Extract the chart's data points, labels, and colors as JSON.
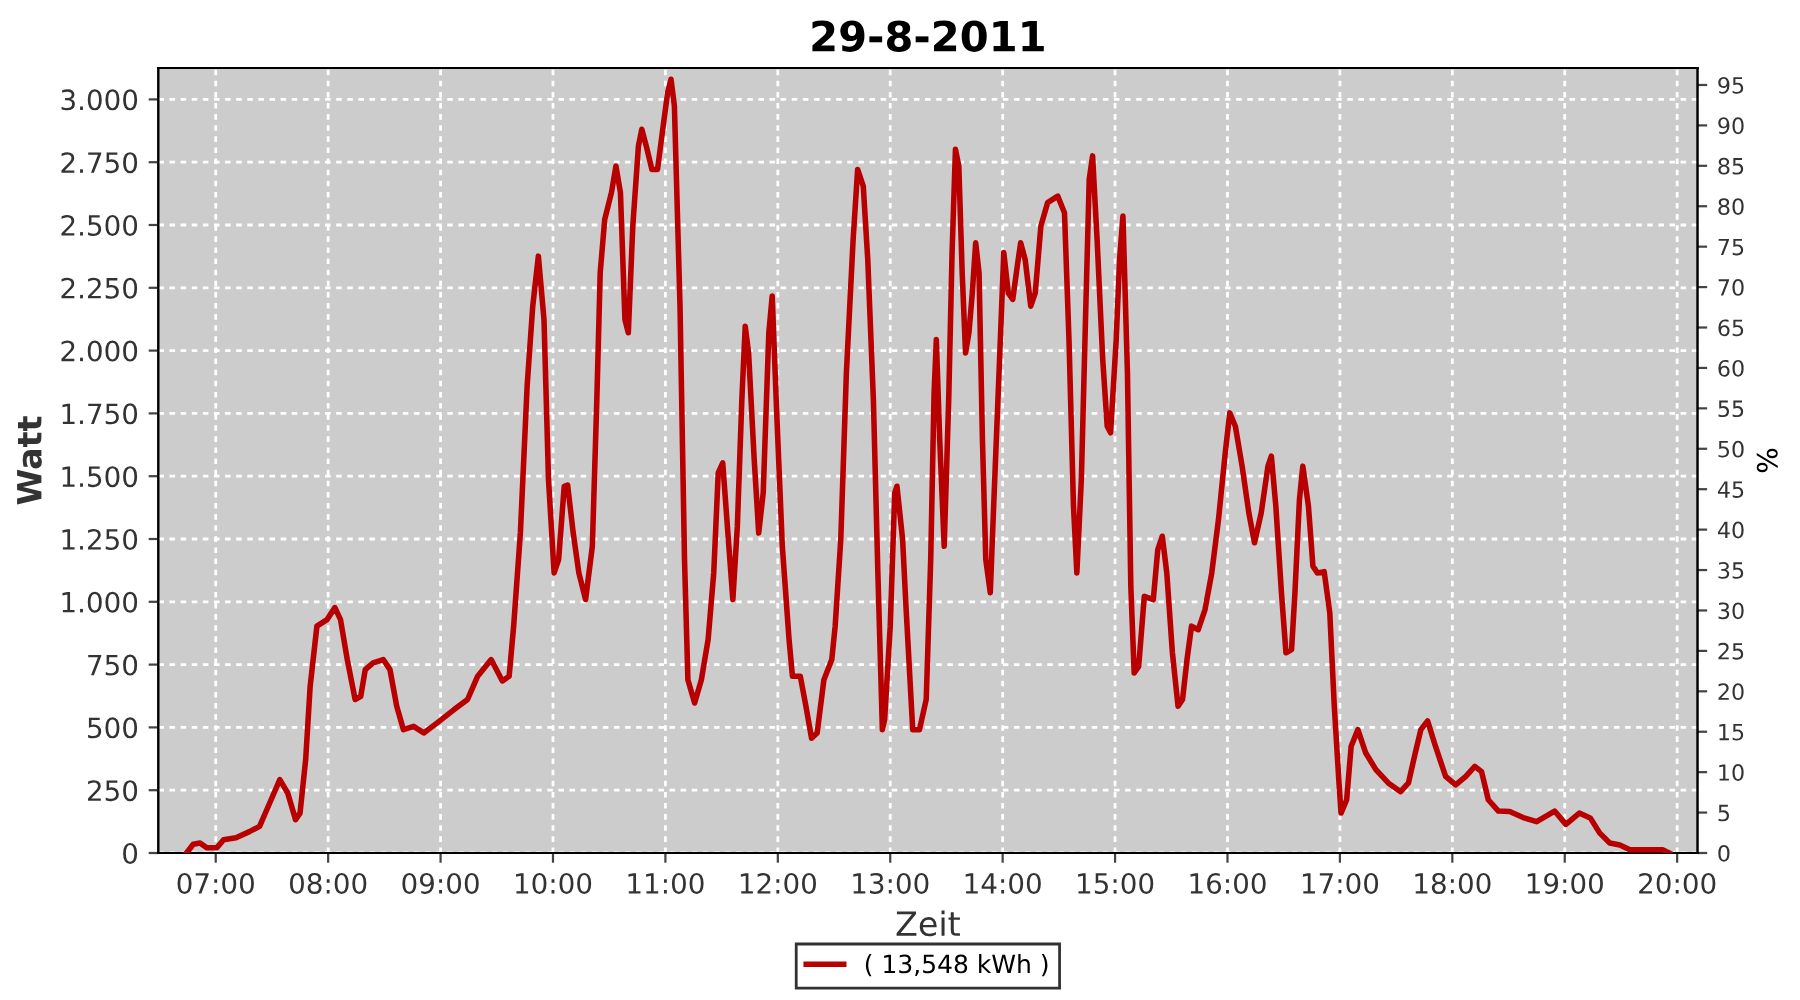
{
  "chart_data": {
    "type": "line",
    "title": "29-8-2011",
    "xlabel": "Zeit",
    "ylabel": "Watt",
    "y2label": "%",
    "xlim": [
      6.49,
      20.18
    ],
    "xticks": [
      {
        "value": 7,
        "label": "07:00"
      },
      {
        "value": 8,
        "label": "08:00"
      },
      {
        "value": 9,
        "label": "09:00"
      },
      {
        "value": 10,
        "label": "10:00"
      },
      {
        "value": 11,
        "label": "11:00"
      },
      {
        "value": 12,
        "label": "12:00"
      },
      {
        "value": 13,
        "label": "13:00"
      },
      {
        "value": 14,
        "label": "14:00"
      },
      {
        "value": 15,
        "label": "15:00"
      },
      {
        "value": 16,
        "label": "16:00"
      },
      {
        "value": 17,
        "label": "17:00"
      },
      {
        "value": 18,
        "label": "18:00"
      },
      {
        "value": 19,
        "label": "19:00"
      },
      {
        "value": 20,
        "label": "20:00"
      }
    ],
    "ylim": [
      0,
      3125
    ],
    "yticks": [
      0,
      250,
      500,
      750,
      {
        "value": 1000,
        "label": "1.000"
      },
      {
        "value": 1250,
        "label": "1.250"
      },
      {
        "value": 1500,
        "label": "1.500"
      },
      {
        "value": 1750,
        "label": "1.750"
      },
      {
        "value": 2000,
        "label": "2.000"
      },
      {
        "value": 2250,
        "label": "2.250"
      },
      {
        "value": 2500,
        "label": "2.500"
      },
      {
        "value": 2750,
        "label": "2.750"
      },
      {
        "value": 3000,
        "label": "3.000"
      }
    ],
    "y2lim": [
      0,
      97.1
    ],
    "y2ticks": [
      0,
      5,
      10,
      15,
      20,
      25,
      30,
      35,
      40,
      45,
      50,
      55,
      60,
      65,
      70,
      75,
      80,
      85,
      90,
      95
    ],
    "grid": true,
    "legend": "bottom",
    "marker": "none",
    "line_style": "solid",
    "series": [
      {
        "name": "( 13,548 kWh )",
        "color": "#b80000",
        "x": [
          6.74,
          6.8,
          6.86,
          6.92,
          7.01,
          7.07,
          7.18,
          7.3,
          7.39,
          7.48,
          7.57,
          7.64,
          7.71,
          7.75,
          7.8,
          7.84,
          7.9,
          7.99,
          8.06,
          8.11,
          8.17,
          8.24,
          8.29,
          8.33,
          8.4,
          8.49,
          8.55,
          8.61,
          8.67,
          8.76,
          8.85,
          8.97,
          9.12,
          9.24,
          9.33,
          9.45,
          9.55,
          9.61,
          9.65,
          9.71,
          9.77,
          9.82,
          9.87,
          9.92,
          9.96,
          10.01,
          10.05,
          10.1,
          10.13,
          10.18,
          10.23,
          10.29,
          10.35,
          10.39,
          10.42,
          10.46,
          10.52,
          10.56,
          10.6,
          10.64,
          10.67,
          10.71,
          10.76,
          10.79,
          10.83,
          10.88,
          10.93,
          10.98,
          11.02,
          11.05,
          11.08,
          11.13,
          11.17,
          11.2,
          11.26,
          11.32,
          11.38,
          11.43,
          11.47,
          11.51,
          11.56,
          11.6,
          11.64,
          11.68,
          11.71,
          11.74,
          11.79,
          11.83,
          11.87,
          11.92,
          11.95,
          11.99,
          12.04,
          12.1,
          12.13,
          12.2,
          12.25,
          12.3,
          12.35,
          12.41,
          12.48,
          12.51,
          12.56,
          12.61,
          12.67,
          12.71,
          12.76,
          12.8,
          12.85,
          12.89,
          12.93,
          12.95,
          13.0,
          13.04,
          13.06,
          13.11,
          13.14,
          13.2,
          13.26,
          13.32,
          13.36,
          13.39,
          13.41,
          13.44,
          13.48,
          13.52,
          13.55,
          13.58,
          13.61,
          13.64,
          13.67,
          13.7,
          13.73,
          13.76,
          13.79,
          13.82,
          13.85,
          13.89,
          13.92,
          13.97,
          14.01,
          14.05,
          14.09,
          14.13,
          14.16,
          14.2,
          14.25,
          14.29,
          14.34,
          14.4,
          14.49,
          14.55,
          14.59,
          14.63,
          14.66,
          14.7,
          14.74,
          14.77,
          14.8,
          14.84,
          14.89,
          14.93,
          14.96,
          15.01,
          15.04,
          15.07,
          15.11,
          15.14,
          15.17,
          15.21,
          15.26,
          15.34,
          15.38,
          15.42,
          15.46,
          15.51,
          15.56,
          15.6,
          15.64,
          15.68,
          15.74,
          15.8,
          15.86,
          15.92,
          15.98,
          16.02,
          16.07,
          16.13,
          16.19,
          16.24,
          16.3,
          16.36,
          16.39,
          16.43,
          16.48,
          16.52,
          16.57,
          16.6,
          16.64,
          16.67,
          16.72,
          16.76,
          16.8,
          16.86,
          16.91,
          16.95,
          16.99,
          17.01,
          17.06,
          17.1,
          17.16,
          17.23,
          17.32,
          17.43,
          17.54,
          17.61,
          17.67,
          17.72,
          17.78,
          17.85,
          17.94,
          18.03,
          18.12,
          18.2,
          18.26,
          18.32,
          18.41,
          18.51,
          18.63,
          18.75,
          18.83,
          18.91,
          19.01,
          19.13,
          19.23,
          19.31,
          19.4,
          19.49,
          19.58,
          19.87,
          19.93
        ],
        "values": [
          0,
          35,
          40,
          21,
          21,
          53,
          61,
          85,
          106,
          199,
          292,
          239,
          133,
          159,
          372,
          664,
          903,
          929,
          977,
          929,
          770,
          611,
          624,
          730,
          757,
          770,
          730,
          584,
          491,
          504,
          478,
          518,
          571,
          611,
          704,
          770,
          685,
          704,
          903,
          1274,
          1859,
          2177,
          2376,
          2124,
          1487,
          1115,
          1168,
          1460,
          1465,
          1274,
          1115,
          1009,
          1221,
          1805,
          2310,
          2522,
          2629,
          2735,
          2629,
          2124,
          2071,
          2496,
          2814,
          2881,
          2814,
          2721,
          2721,
          2894,
          3027,
          3080,
          2974,
          2177,
          1168,
          690,
          597,
          690,
          850,
          1115,
          1513,
          1553,
          1248,
          1009,
          1301,
          1805,
          2097,
          1991,
          1566,
          1274,
          1434,
          2071,
          2217,
          1752,
          1221,
          850,
          704,
          704,
          584,
          457,
          478,
          690,
          770,
          903,
          1248,
          1912,
          2443,
          2721,
          2655,
          2363,
          1805,
          1115,
          491,
          531,
          903,
          1434,
          1460,
          1248,
          982,
          491,
          491,
          611,
          1168,
          1832,
          2044,
          1646,
          1221,
          1805,
          2390,
          2801,
          2735,
          2310,
          1991,
          2071,
          2230,
          2429,
          2310,
          1646,
          1168,
          1036,
          1381,
          1938,
          2390,
          2230,
          2204,
          2336,
          2429,
          2363,
          2177,
          2230,
          2496,
          2589,
          2615,
          2549,
          2044,
          1381,
          1115,
          1487,
          2177,
          2682,
          2775,
          2443,
          1965,
          1699,
          1673,
          2044,
          2363,
          2536,
          1912,
          1062,
          717,
          743,
          1022,
          1009,
          1208,
          1261,
          1115,
          797,
          584,
          611,
          770,
          903,
          889,
          969,
          1115,
          1328,
          1593,
          1752,
          1699,
          1540,
          1354,
          1235,
          1354,
          1540,
          1580,
          1381,
          1036,
          797,
          810,
          1036,
          1407,
          1540,
          1381,
          1142,
          1115,
          1120,
          956,
          584,
          292,
          159,
          212,
          425,
          491,
          398,
          332,
          279,
          244,
          279,
          398,
          491,
          526,
          425,
          305,
          271,
          305,
          345,
          324,
          212,
          167,
          165,
          141,
          125,
          146,
          167,
          114,
          159,
          138,
          80,
          40,
          32,
          13,
          13,
          0
        ]
      }
    ]
  }
}
